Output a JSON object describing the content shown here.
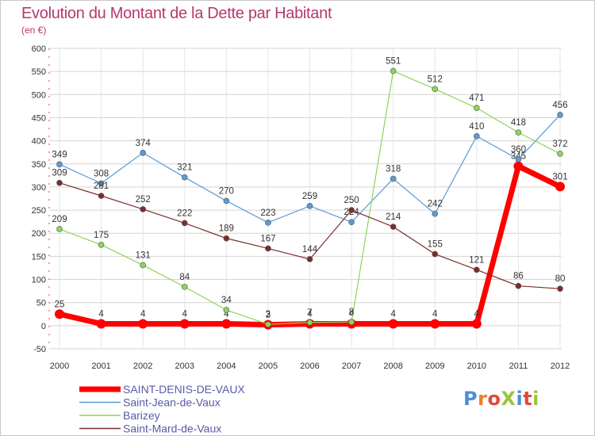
{
  "title": "Evolution du Montant de la Dette par Habitant",
  "unit": "(en €)",
  "logo_text": "ProXiti",
  "colors": {
    "title": "#b5386e",
    "saint_denis": "#ff0000",
    "saint_jean": "#5b9bd5",
    "barizey": "#8fd45a",
    "saint_mard": "#7b2d2d",
    "grid": "#d4d4d4"
  },
  "chart_data": {
    "type": "line",
    "title": "Evolution du Montant de la Dette par Habitant",
    "subtitle": "(en €)",
    "xlabel": "",
    "ylabel": "",
    "x": [
      "2000",
      "2001",
      "2002",
      "2003",
      "2004",
      "2005",
      "2006",
      "2007",
      "2008",
      "2009",
      "2010",
      "2011",
      "2012"
    ],
    "ylim": [
      -50,
      600
    ],
    "yticks": [
      -50,
      0,
      50,
      100,
      150,
      200,
      250,
      300,
      350,
      400,
      450,
      500,
      550,
      600
    ],
    "grid": true,
    "legend_position": "bottom-left",
    "series": [
      {
        "name": "SAINT-DENIS-DE-VAUX",
        "color": "#ff0000",
        "width": 7,
        "marker": 6,
        "values": [
          25,
          4,
          4,
          4,
          4,
          2,
          4,
          4,
          4,
          4,
          4,
          345,
          301
        ],
        "labels": [
          "25",
          "4",
          "4",
          "4",
          "4",
          "2",
          "4",
          "4",
          "4",
          "4",
          "4",
          "345",
          "301"
        ]
      },
      {
        "name": "Saint-Jean-de-Vaux",
        "color": "#5b9bd5",
        "width": 1.2,
        "marker": 3.5,
        "values": [
          349,
          308,
          374,
          321,
          270,
          223,
          259,
          224,
          318,
          242,
          410,
          360,
          456
        ],
        "labels": [
          "349",
          "308",
          "374",
          "321",
          "270",
          "223",
          "259",
          "224",
          "318",
          "242",
          "410",
          "360",
          "456"
        ]
      },
      {
        "name": "Barizey",
        "color": "#8fd45a",
        "width": 1.2,
        "marker": 3.5,
        "values": [
          209,
          175,
          131,
          84,
          34,
          3,
          7,
          8,
          551,
          512,
          471,
          418,
          372
        ],
        "labels": [
          "209",
          "175",
          "131",
          "84",
          "34",
          "3",
          "7",
          "8",
          "551",
          "512",
          "471",
          "418",
          "372"
        ]
      },
      {
        "name": "Saint-Mard-de-Vaux",
        "color": "#7b2d2d",
        "width": 1.2,
        "marker": 3.5,
        "values": [
          309,
          281,
          252,
          222,
          189,
          167,
          144,
          250,
          214,
          155,
          121,
          86,
          80
        ],
        "labels": [
          "309",
          "281",
          "252",
          "222",
          "189",
          "167",
          "144",
          "250",
          "214",
          "155",
          "121",
          "86",
          "80"
        ]
      }
    ]
  }
}
